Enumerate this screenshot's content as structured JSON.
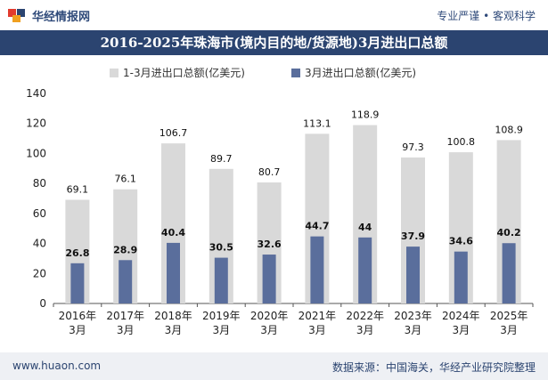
{
  "header": {
    "brand": "华经情报网",
    "tagline": "专业严谨 • 客观科学",
    "title": "2016-2025年珠海市(境内目的地/货源地)3月进出口总额"
  },
  "footer": {
    "website": "www.huaon.com",
    "source": "数据来源：中国海关，华经产业研究院整理"
  },
  "colors": {
    "title_bg": "#2b4470",
    "cumulative": "#d9d9d9",
    "march": "#5a6e9c"
  },
  "chart_data": {
    "type": "bar",
    "categories": [
      "2016年\n3月",
      "2017年\n3月",
      "2018年\n3月",
      "2019年\n3月",
      "2020年\n3月",
      "2021年\n3月",
      "2022年\n3月",
      "2023年\n3月",
      "2024年\n3月",
      "2025年\n3月"
    ],
    "series": [
      {
        "name": "1-3月进出口总额(亿美元)",
        "values": [
          69.1,
          76.1,
          106.7,
          89.7,
          80.7,
          113.1,
          118.9,
          97.3,
          100.8,
          108.9
        ]
      },
      {
        "name": "3月进出口总额(亿美元)",
        "values": [
          26.8,
          28.9,
          40.4,
          30.5,
          32.6,
          44.7,
          44,
          37.9,
          34.6,
          40.2
        ]
      }
    ],
    "ylim": [
      0,
      140
    ],
    "yticks": [
      0,
      20,
      40,
      60,
      80,
      100,
      120,
      140
    ],
    "legend": "top-center",
    "grid": false
  }
}
